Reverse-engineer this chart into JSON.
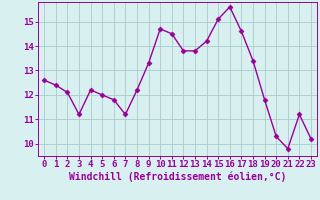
{
  "x": [
    0,
    1,
    2,
    3,
    4,
    5,
    6,
    7,
    8,
    9,
    10,
    11,
    12,
    13,
    14,
    15,
    16,
    17,
    18,
    19,
    20,
    21,
    22,
    23
  ],
  "y": [
    12.6,
    12.4,
    12.1,
    11.2,
    12.2,
    12.0,
    11.8,
    11.2,
    12.2,
    13.3,
    14.7,
    14.5,
    13.8,
    13.8,
    14.2,
    15.1,
    15.6,
    14.6,
    13.4,
    11.8,
    10.3,
    9.8,
    11.2,
    10.2
  ],
  "line_color": "#990099",
  "marker": "D",
  "marker_size": 2.5,
  "bg_color": "#d8f0f0",
  "grid_color": "#aacccc",
  "xlabel": "Windchill (Refroidissement éolien,°C)",
  "ylabel_ticks": [
    10,
    11,
    12,
    13,
    14,
    15
  ],
  "xlim": [
    -0.5,
    23.5
  ],
  "ylim": [
    9.5,
    15.8
  ],
  "xtick_labels": [
    "0",
    "1",
    "2",
    "3",
    "4",
    "5",
    "6",
    "7",
    "8",
    "9",
    "10",
    "11",
    "12",
    "13",
    "14",
    "15",
    "16",
    "17",
    "18",
    "19",
    "20",
    "21",
    "22",
    "23"
  ],
  "xlabel_fontsize": 7,
  "tick_fontsize": 6.5,
  "line_width": 1.0
}
